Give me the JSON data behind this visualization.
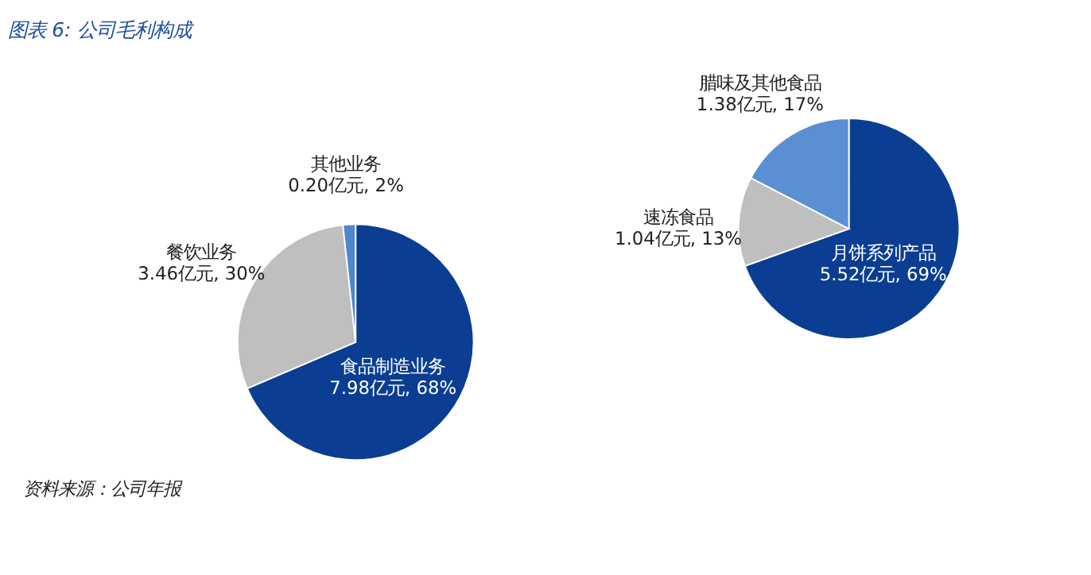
{
  "chart_data": [
    {
      "type": "pie",
      "title": "图表 6:  公司毛利构成",
      "categories": [
        "食品制造业务",
        "餐饮业务",
        "其他业务"
      ],
      "values": [
        7.98,
        3.46,
        0.2
      ],
      "value_labels": [
        "7.98亿元, 68%",
        "3.46亿元, 30%",
        "0.20亿元, 2%"
      ],
      "colors": [
        "#0b3e92",
        "#bfbfbf",
        "#4f86d0"
      ],
      "annotations": [
        "资料来源：公司年报"
      ]
    },
    {
      "type": "pie",
      "categories": [
        "月饼系列产品",
        "速冻食品",
        "腊味及其他食品"
      ],
      "values": [
        5.52,
        1.04,
        1.38
      ],
      "value_labels": [
        "5.52亿元, 69%",
        "1.04亿元, 13%",
        "1.38亿元, 17%"
      ],
      "colors": [
        "#0b3e92",
        "#bfbfbf",
        "#5b8fd4"
      ]
    }
  ]
}
